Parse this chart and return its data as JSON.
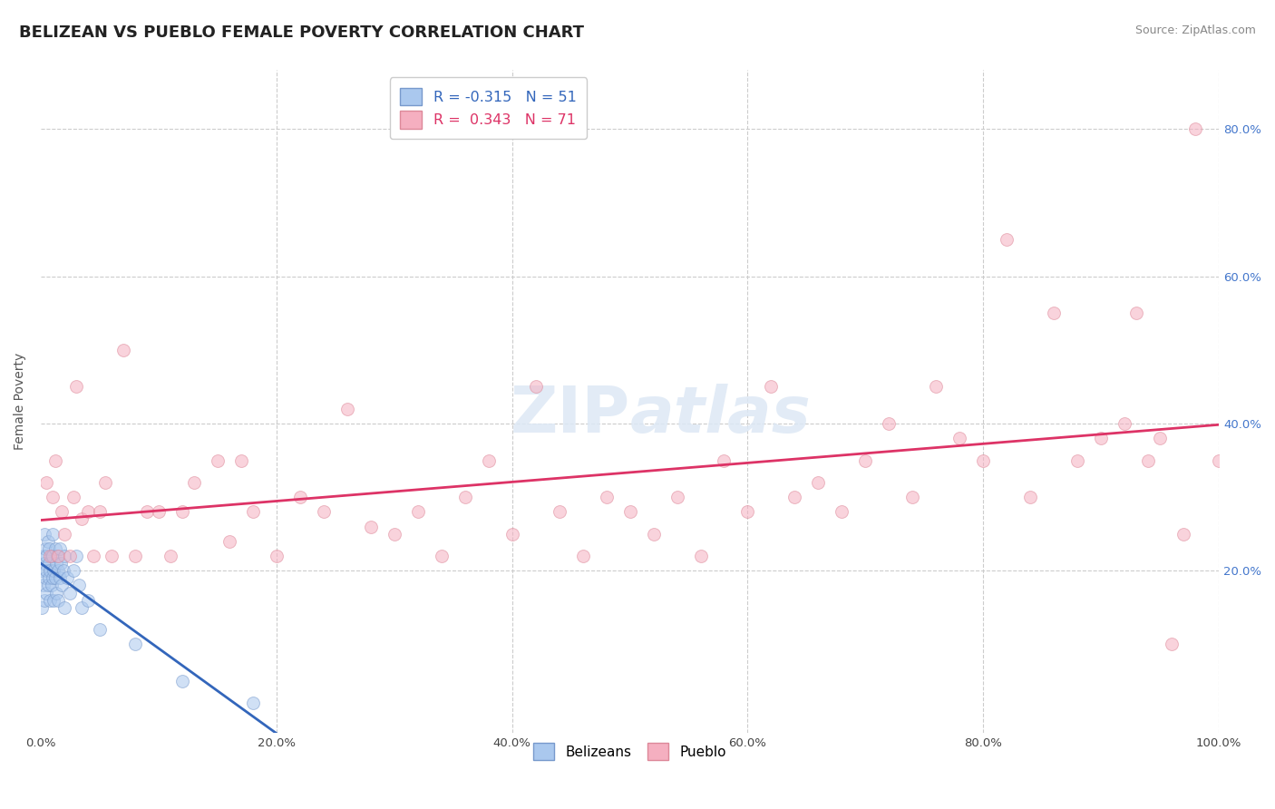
{
  "title": "BELIZEAN VS PUEBLO FEMALE POVERTY CORRELATION CHART",
  "source_text": "Source: ZipAtlas.com",
  "ylabel": "Female Poverty",
  "xlim": [
    0.0,
    1.0
  ],
  "ylim": [
    -0.02,
    0.88
  ],
  "xticks": [
    0.0,
    0.2,
    0.4,
    0.6,
    0.8,
    1.0
  ],
  "yticks": [
    0.0,
    0.2,
    0.4,
    0.6,
    0.8
  ],
  "xtick_labels": [
    "0.0%",
    "20.0%",
    "40.0%",
    "60.0%",
    "80.0%",
    "100.0%"
  ],
  "ytick_labels_right": [
    "",
    "20.0%",
    "40.0%",
    "60.0%",
    "80.0%"
  ],
  "background_color": "#ffffff",
  "plot_bg_color": "#ffffff",
  "grid_color": "#cccccc",
  "belizean_color": "#aac8ee",
  "pueblo_color": "#f5afc0",
  "belizean_edge_color": "#7799cc",
  "pueblo_edge_color": "#dd8899",
  "belizean_line_color": "#3366bb",
  "pueblo_line_color": "#dd3366",
  "R_belizean": -0.315,
  "N_belizean": 51,
  "R_pueblo": 0.343,
  "N_pueblo": 71,
  "legend_label_belizeans": "Belizeans",
  "legend_label_pueblo": "Pueblo",
  "marker_size": 100,
  "marker_alpha": 0.55,
  "title_color": "#222222",
  "title_fontsize": 13,
  "axis_label_fontsize": 10,
  "tick_fontsize": 9.5,
  "source_fontsize": 9,
  "belizean_x": [
    0.001,
    0.001,
    0.002,
    0.002,
    0.003,
    0.003,
    0.003,
    0.004,
    0.004,
    0.005,
    0.005,
    0.005,
    0.006,
    0.006,
    0.007,
    0.007,
    0.007,
    0.008,
    0.008,
    0.009,
    0.009,
    0.01,
    0.01,
    0.01,
    0.011,
    0.011,
    0.012,
    0.012,
    0.013,
    0.013,
    0.014,
    0.015,
    0.015,
    0.016,
    0.016,
    0.017,
    0.018,
    0.019,
    0.02,
    0.02,
    0.022,
    0.025,
    0.028,
    0.03,
    0.032,
    0.035,
    0.04,
    0.05,
    0.08,
    0.12,
    0.18
  ],
  "belizean_y": [
    0.2,
    0.15,
    0.22,
    0.18,
    0.25,
    0.16,
    0.21,
    0.19,
    0.23,
    0.17,
    0.22,
    0.2,
    0.24,
    0.18,
    0.21,
    0.19,
    0.23,
    0.2,
    0.16,
    0.22,
    0.18,
    0.25,
    0.19,
    0.22,
    0.2,
    0.16,
    0.23,
    0.19,
    0.21,
    0.17,
    0.22,
    0.2,
    0.16,
    0.23,
    0.19,
    0.21,
    0.18,
    0.2,
    0.22,
    0.15,
    0.19,
    0.17,
    0.2,
    0.22,
    0.18,
    0.15,
    0.16,
    0.12,
    0.1,
    0.05,
    0.02
  ],
  "pueblo_x": [
    0.005,
    0.008,
    0.01,
    0.012,
    0.015,
    0.018,
    0.02,
    0.025,
    0.028,
    0.03,
    0.035,
    0.04,
    0.045,
    0.05,
    0.055,
    0.06,
    0.07,
    0.08,
    0.09,
    0.1,
    0.11,
    0.12,
    0.13,
    0.15,
    0.16,
    0.17,
    0.18,
    0.2,
    0.22,
    0.24,
    0.26,
    0.28,
    0.3,
    0.32,
    0.34,
    0.36,
    0.38,
    0.4,
    0.42,
    0.44,
    0.46,
    0.48,
    0.5,
    0.52,
    0.54,
    0.56,
    0.58,
    0.6,
    0.62,
    0.64,
    0.66,
    0.68,
    0.7,
    0.72,
    0.74,
    0.76,
    0.78,
    0.8,
    0.82,
    0.84,
    0.86,
    0.88,
    0.9,
    0.92,
    0.93,
    0.94,
    0.95,
    0.96,
    0.97,
    0.98,
    1.0
  ],
  "pueblo_y": [
    0.32,
    0.22,
    0.3,
    0.35,
    0.22,
    0.28,
    0.25,
    0.22,
    0.3,
    0.45,
    0.27,
    0.28,
    0.22,
    0.28,
    0.32,
    0.22,
    0.5,
    0.22,
    0.28,
    0.28,
    0.22,
    0.28,
    0.32,
    0.35,
    0.24,
    0.35,
    0.28,
    0.22,
    0.3,
    0.28,
    0.42,
    0.26,
    0.25,
    0.28,
    0.22,
    0.3,
    0.35,
    0.25,
    0.45,
    0.28,
    0.22,
    0.3,
    0.28,
    0.25,
    0.3,
    0.22,
    0.35,
    0.28,
    0.45,
    0.3,
    0.32,
    0.28,
    0.35,
    0.4,
    0.3,
    0.45,
    0.38,
    0.35,
    0.65,
    0.3,
    0.55,
    0.35,
    0.38,
    0.4,
    0.55,
    0.35,
    0.38,
    0.1,
    0.25,
    0.8,
    0.35
  ]
}
